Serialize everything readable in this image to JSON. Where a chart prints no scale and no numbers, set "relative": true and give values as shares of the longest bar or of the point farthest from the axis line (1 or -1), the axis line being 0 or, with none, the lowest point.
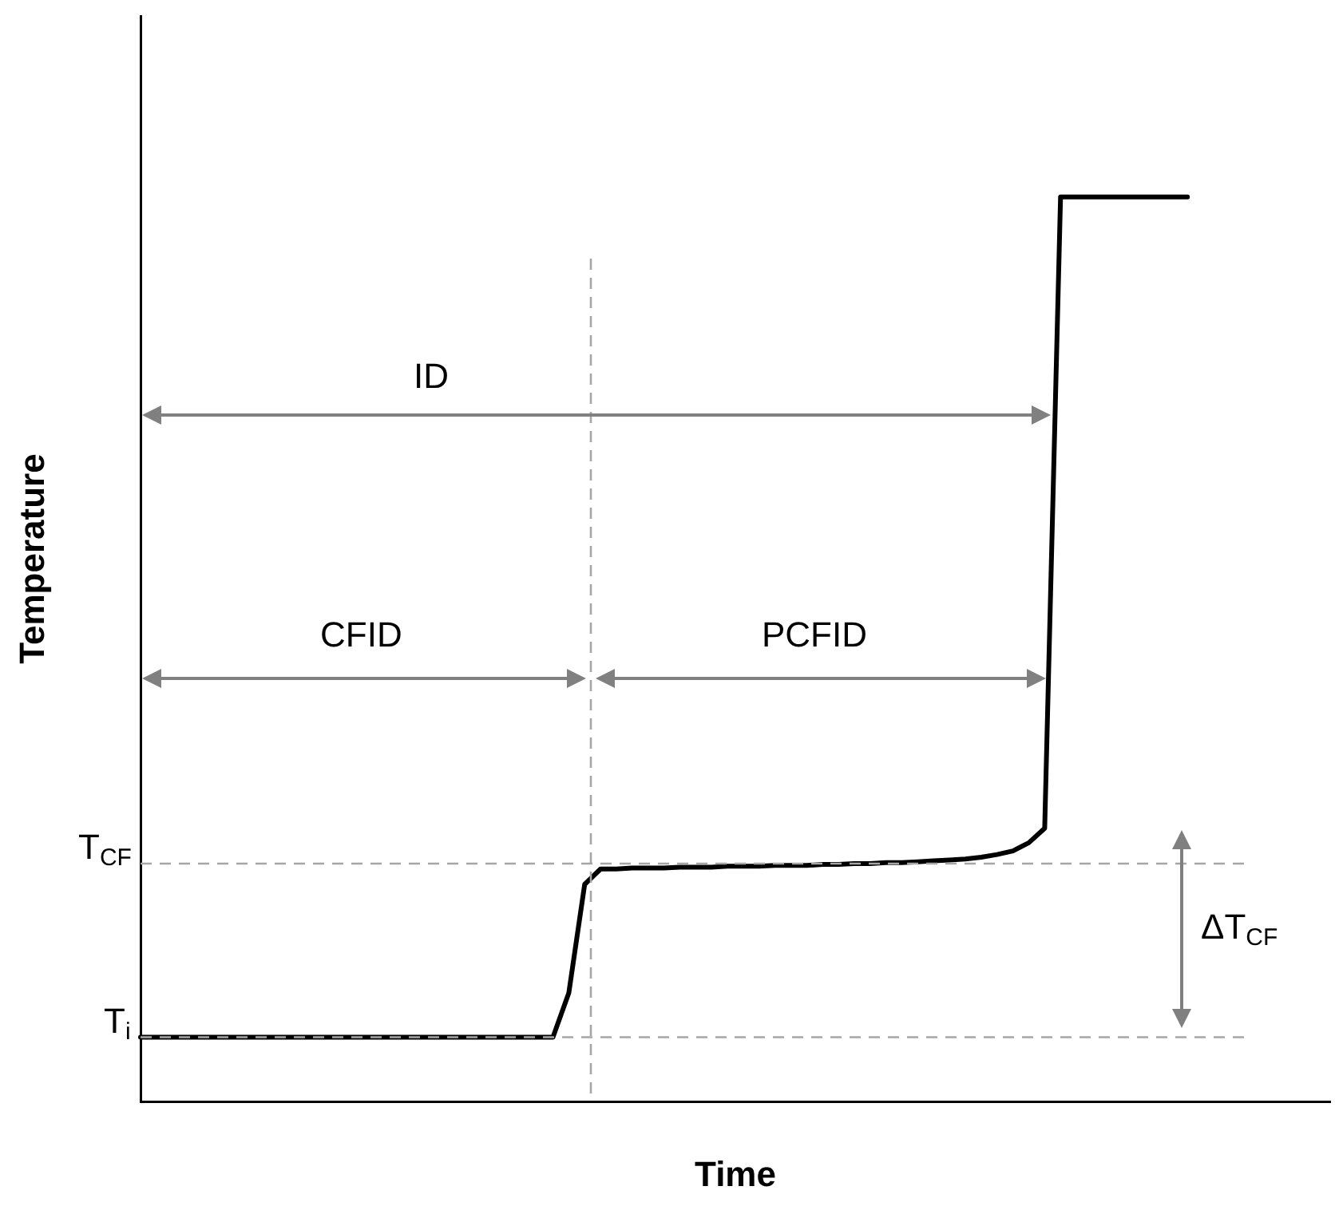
{
  "chart_data": {
    "type": "line",
    "relative": true,
    "xlabel": "Time",
    "ylabel": "Temperature",
    "categories": [
      null,
      null,
      null,
      null,
      null,
      null,
      null,
      null,
      null,
      null,
      null,
      null,
      null,
      null,
      null,
      null,
      null,
      null,
      null,
      null,
      null,
      null,
      null,
      null,
      null,
      null,
      null,
      null,
      null,
      null,
      null,
      null,
      null,
      null,
      null,
      null,
      null,
      null,
      null,
      null,
      null,
      null,
      null,
      null,
      null,
      null,
      null,
      null,
      null,
      null,
      null,
      null,
      null,
      null,
      null,
      null,
      null,
      null,
      null,
      null,
      null,
      null,
      null,
      null,
      null,
      null,
      null,
      null,
      null,
      null,
      null,
      null,
      null,
      null,
      null,
      null
    ],
    "series": [
      {
        "color": "#000000",
        "values": [
          0.071,
          0.071,
          0.071,
          0.071,
          0.071,
          0.071,
          0.071,
          0.071,
          0.071,
          0.071,
          0.071,
          0.071,
          0.071,
          0.071,
          0.071,
          0.071,
          0.071,
          0.071,
          0.071,
          0.071,
          0.071,
          0.071,
          0.071,
          0.071,
          0.071,
          0.071,
          0.071,
          0.12,
          0.24,
          0.257,
          0.257,
          0.258,
          0.258,
          0.258,
          0.259,
          0.259,
          0.259,
          0.26,
          0.26,
          0.26,
          0.261,
          0.261,
          0.261,
          0.262,
          0.262,
          0.263,
          0.263,
          0.264,
          0.264,
          0.265,
          0.266,
          0.267,
          0.268,
          0.27,
          0.273,
          0.277,
          0.286,
          0.302,
          1,
          1,
          1,
          1,
          1,
          1,
          1,
          1,
          1,
          null,
          null,
          null,
          null,
          null,
          null,
          null,
          null,
          null
        ]
      }
    ],
    "marker": "none",
    "line_style": "solid",
    "grid": false,
    "legend": false,
    "ref_lines": [
      {
        "axis": "y",
        "value": 0.263,
        "label": "T$_{CF}$",
        "color": "#a6a6a6",
        "line_style": "dashed"
      },
      {
        "axis": "y",
        "value": 0.071,
        "label": "T$_{i}$",
        "color": "#a6a6a6",
        "line_style": "dashed"
      }
    ],
    "annotations": [
      "ID",
      "CFID",
      "PCFID",
      "ΔT$_{CF}$"
    ]
  }
}
